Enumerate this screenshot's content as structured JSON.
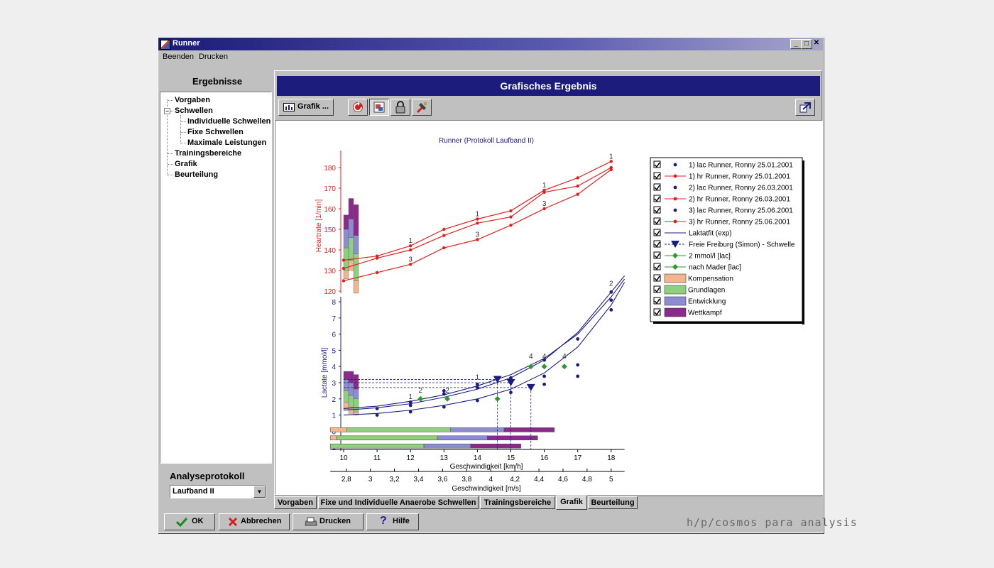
{
  "window": {
    "title": "Runner"
  },
  "menu": {
    "items": [
      "Beenden",
      "Drucken"
    ]
  },
  "sidebar": {
    "heading": "Ergebnisse",
    "tree": [
      {
        "label": "Vorgaben",
        "level": 0
      },
      {
        "label": "Schwellen",
        "level": 0,
        "expanded": true
      },
      {
        "label": "Individuelle Schwellen",
        "level": 1
      },
      {
        "label": "Fixe Schwellen",
        "level": 1
      },
      {
        "label": "Maximale Leistungen",
        "level": 1
      },
      {
        "label": "Trainingsbereiche",
        "level": 0
      },
      {
        "label": "Grafik",
        "level": 0
      },
      {
        "label": "Beurteilung",
        "level": 0
      }
    ],
    "protocol_label": "Analyseprotokoll",
    "protocol_value": "Laufband II"
  },
  "panel": {
    "title": "Grafisches Ergebnis"
  },
  "toolbar": {
    "grafik_label": "Grafik ..."
  },
  "tabs": [
    "Vorgaben",
    "Fixe und Individuelle Anaerobe Schwellen",
    "Trainingsbereiche",
    "Grafik",
    "Beurteilung"
  ],
  "active_tab": "Grafik",
  "buttons": {
    "ok": "OK",
    "cancel": "Abbrechen",
    "print": "Drucken",
    "help": "Hilfe"
  },
  "brand": "h/p/cosmos para analysis",
  "chart_data": {
    "type": "line",
    "title": "Runner (Protokoll Laufband II)",
    "colors": {
      "heartrate": "#e02020",
      "lactate": "#1c1c80",
      "threshold": "#2a9a2a",
      "kompensation": "#f4b48c",
      "grundlagen": "#8ed07e",
      "entwicklung": "#8c8cd4",
      "wettkampf": "#8c2a8c"
    },
    "heartrate_axis": {
      "label": "Heartrate [1/min]",
      "ylim": [
        117,
        185
      ],
      "ticks": [
        120,
        130,
        140,
        150,
        160,
        170,
        180
      ]
    },
    "lactate_axis": {
      "label": "Lactate [mmol/l]",
      "ylim": [
        -1.1,
        8.5
      ],
      "ticks": [
        -1,
        0,
        1,
        2,
        3,
        4,
        5,
        6,
        7,
        8
      ]
    },
    "x_axis": {
      "label": "Geschwindigkeit [km/h]",
      "xlim": [
        9.6,
        18.4
      ],
      "ticks": [
        10,
        11,
        12,
        13,
        14,
        15,
        16,
        17,
        18
      ]
    },
    "x_axis2": {
      "label": "Geschwindigkeit [m/s]",
      "ticks": [
        "2,8",
        "3",
        "3,2",
        "3,4",
        "3,6",
        "3,8",
        "4",
        "4,2",
        "4,4",
        "4,6",
        "4,8",
        "5"
      ]
    },
    "heartrate_series": [
      {
        "name": "1) hr Runner, Ronny 25.01.2001",
        "x": [
          10,
          11,
          12,
          13,
          14,
          15,
          16,
          17,
          18
        ],
        "y": [
          135,
          137,
          142,
          150,
          155,
          159,
          169,
          175,
          183
        ]
      },
      {
        "name": "2) hr Runner, Ronny 26.03.2001",
        "x": [
          10,
          11,
          12,
          13,
          14,
          15,
          16,
          17,
          18
        ],
        "y": [
          131,
          136,
          140,
          147,
          153,
          156,
          168,
          171,
          180
        ]
      },
      {
        "name": "3) hr Runner, Ronny 25.06.2001",
        "x": [
          10,
          11,
          12,
          13,
          14,
          15,
          16,
          17,
          18
        ],
        "y": [
          125,
          129,
          133,
          141,
          145,
          152,
          160,
          167,
          179
        ]
      }
    ],
    "heartrate_labels": [
      {
        "text": "1",
        "x": 12,
        "y": 142
      },
      {
        "text": "3",
        "x": 12,
        "y": 133
      },
      {
        "text": "1",
        "x": 14,
        "y": 155
      },
      {
        "text": "3",
        "x": 14,
        "y": 145
      },
      {
        "text": "1",
        "x": 16,
        "y": 169
      },
      {
        "text": "3",
        "x": 16,
        "y": 160
      },
      {
        "text": "1",
        "x": 18,
        "y": 183
      }
    ],
    "lactate_points": [
      {
        "x": 11,
        "y": 1.0
      },
      {
        "x": 11,
        "y": 1.4
      },
      {
        "x": 12,
        "y": 1.2
      },
      {
        "x": 12,
        "y": 1.6
      },
      {
        "x": 12,
        "y": 1.8
      },
      {
        "x": 13,
        "y": 1.5
      },
      {
        "x": 13,
        "y": 2.3
      },
      {
        "x": 13,
        "y": 2.5
      },
      {
        "x": 14,
        "y": 1.9
      },
      {
        "x": 14,
        "y": 2.7
      },
      {
        "x": 14,
        "y": 2.9
      },
      {
        "x": 15,
        "y": 2.4
      },
      {
        "x": 15,
        "y": 3.2
      },
      {
        "x": 15,
        "y": 3.3
      },
      {
        "x": 16,
        "y": 2.9
      },
      {
        "x": 16,
        "y": 3.4
      },
      {
        "x": 16,
        "y": 4.4
      },
      {
        "x": 17,
        "y": 3.4
      },
      {
        "x": 17,
        "y": 4.1
      },
      {
        "x": 17,
        "y": 5.7
      },
      {
        "x": 18,
        "y": 7.5
      },
      {
        "x": 18,
        "y": 8.1
      },
      {
        "x": 18,
        "y": 8.6
      }
    ],
    "lactate_fit": [
      {
        "name": "Laktatfit (exp)",
        "x": [
          10,
          11,
          12,
          13,
          14,
          15,
          16,
          17,
          18,
          18.4
        ],
        "y": [
          1.0,
          1.1,
          1.3,
          1.6,
          2.0,
          2.6,
          3.6,
          5.2,
          7.8,
          9.2
        ]
      },
      {
        "x": [
          10,
          11,
          12,
          13,
          14,
          15,
          16,
          17,
          18,
          18.4
        ],
        "y": [
          1.3,
          1.45,
          1.7,
          2.1,
          2.6,
          3.3,
          4.4,
          6.1,
          8.6,
          9.6
        ]
      },
      {
        "x": [
          10,
          11,
          12,
          13,
          14,
          15,
          16,
          17,
          18,
          18.4
        ],
        "y": [
          1.4,
          1.55,
          1.85,
          2.25,
          2.8,
          3.5,
          4.5,
          6.0,
          8.3,
          9.4
        ]
      }
    ],
    "threshold_markers": [
      {
        "x": 14.6,
        "y": 3.2
      },
      {
        "x": 15.0,
        "y": 3.0
      },
      {
        "x": 15.6,
        "y": 2.7
      }
    ],
    "mmol2_markers": [
      {
        "x": 12.3,
        "y": 2.0
      },
      {
        "x": 13.1,
        "y": 2.0
      },
      {
        "x": 14.6,
        "y": 2.0
      }
    ],
    "mader_markers": [
      {
        "x": 15.6,
        "y": 4.0
      },
      {
        "x": 16.0,
        "y": 4.0
      },
      {
        "x": 16.6,
        "y": 4.0
      }
    ],
    "lactate_labels": [
      {
        "text": "1",
        "x": 12,
        "y": 1.9
      },
      {
        "text": "2",
        "x": 12.3,
        "y": 2.3
      },
      {
        "text": "2",
        "x": 13.1,
        "y": 2.3
      },
      {
        "text": "1",
        "x": 14,
        "y": 3.1
      },
      {
        "text": "4",
        "x": 15.6,
        "y": 4.4
      },
      {
        "text": "4",
        "x": 16.0,
        "y": 4.4
      },
      {
        "text": "4",
        "x": 16.6,
        "y": 4.4
      },
      {
        "text": "2",
        "x": 18,
        "y": 8.9
      }
    ],
    "zone_bars": [
      {
        "row": 0.0,
        "segments": [
          {
            "zone": "kompensation",
            "from": 9.6,
            "to": 10.1
          },
          {
            "zone": "grundlagen",
            "from": 10.1,
            "to": 13.2
          },
          {
            "zone": "entwicklung",
            "from": 13.2,
            "to": 14.8
          },
          {
            "zone": "wettkampf",
            "from": 14.8,
            "to": 16.3
          }
        ]
      },
      {
        "row": -0.5,
        "segments": [
          {
            "zone": "kompensation",
            "from": 9.6,
            "to": 9.8
          },
          {
            "zone": "grundlagen",
            "from": 9.8,
            "to": 12.8
          },
          {
            "zone": "entwicklung",
            "from": 12.8,
            "to": 14.3
          },
          {
            "zone": "wettkampf",
            "from": 14.3,
            "to": 15.8
          }
        ]
      },
      {
        "row": -1.0,
        "segments": [
          {
            "zone": "grundlagen",
            "from": 9.6,
            "to": 12.4
          },
          {
            "zone": "entwicklung",
            "from": 12.4,
            "to": 13.8
          },
          {
            "zone": "wettkampf",
            "from": 13.8,
            "to": 15.3
          }
        ]
      }
    ],
    "legend": [
      {
        "label": "1) lac Runner, Ronny 25.01.2001",
        "marker": "dot",
        "color": "#1c1c80",
        "checked": true
      },
      {
        "label": "1) hr Runner, Ronny 25.01.2001",
        "marker": "line-dot",
        "color": "#e02020",
        "checked": true
      },
      {
        "label": "2) lac Runner, Ronny 26.03.2001",
        "marker": "dot",
        "color": "#1c1c80",
        "checked": true
      },
      {
        "label": "2) hr Runner, Ronny 26.03.2001",
        "marker": "line-dot",
        "color": "#e02020",
        "checked": true
      },
      {
        "label": "3) lac Runner, Ronny 25.06.2001",
        "marker": "dot",
        "color": "#1c1c80",
        "checked": true
      },
      {
        "label": "3) hr Runner, Ronny 25.06.2001",
        "marker": "line-dot",
        "color": "#e02020",
        "checked": true
      },
      {
        "label": "Laktatfit (exp)",
        "marker": "line",
        "color": "#1c1c80",
        "checked": true
      },
      {
        "label": "Freie Freiburg (Simon) - Schwelle",
        "marker": "dash-tri",
        "color": "#1c1c80",
        "checked": true
      },
      {
        "label": "2 mmol/l [lac]",
        "marker": "line-diamond",
        "color": "#2a9a2a",
        "checked": true
      },
      {
        "label": "nach Mader [lac]",
        "marker": "line-diamond",
        "color": "#2a9a2a",
        "checked": true
      },
      {
        "label": "Kompensation",
        "marker": "box",
        "color": "#f4b48c",
        "checked": true
      },
      {
        "label": "Grundlagen",
        "marker": "box",
        "color": "#8ed07e",
        "checked": true
      },
      {
        "label": "Entwicklung",
        "marker": "box",
        "color": "#8c8cd4",
        "checked": true
      },
      {
        "label": "Wettkampf",
        "marker": "box",
        "color": "#8c2a8c",
        "checked": true
      }
    ]
  }
}
